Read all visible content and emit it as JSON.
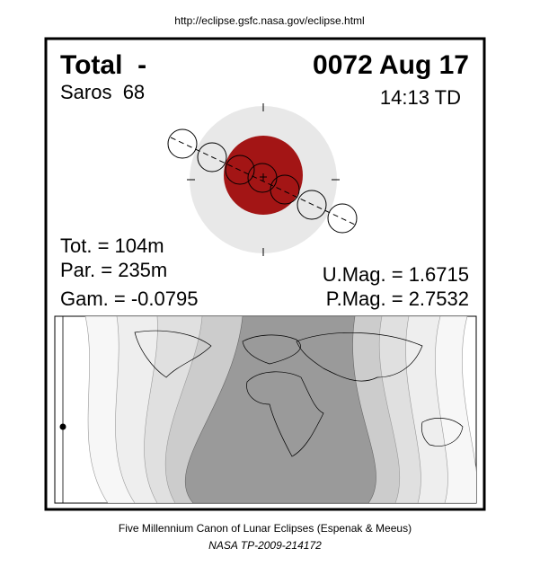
{
  "url": "http://eclipse.gsfc.nasa.gov/eclipse.html",
  "header": {
    "type": "Total  -",
    "date": "0072 Aug 17",
    "saros": "Saros  68",
    "time": "14:13 TD"
  },
  "stats": {
    "tot": "Tot. = 104m",
    "par": "Par. = 235m",
    "gam": "Gam. = -0.0795",
    "umag": "U.Mag. = 1.6715",
    "pmag": "P.Mag. = 2.7532"
  },
  "footer": {
    "canon": "Five Millennium Canon of Lunar Eclipses (Espenak & Meeus)",
    "publication": "NASA TP-2009-214172"
  }
}
